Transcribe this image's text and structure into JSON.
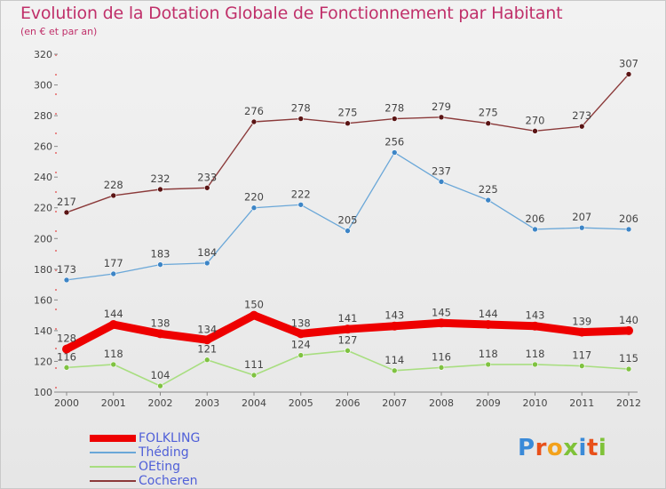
{
  "title": "Evolution de la Dotation Globale de Fonctionnement par Habitant",
  "subtitle": "(en € et par an)",
  "logo": {
    "letters": [
      "P",
      "r",
      "o",
      "x",
      "i",
      "t",
      "i"
    ],
    "colors": [
      "#3a8ad8",
      "#e8501a",
      "#f3a21c",
      "#7fc238",
      "#3a8ad8",
      "#e8501a",
      "#7fc238"
    ]
  },
  "chart_data": {
    "type": "line",
    "title": "Evolution de la Dotation Globale de Fonctionnement par Habitant",
    "subtitle": "(en € et par an)",
    "x": [
      "2000",
      "2001",
      "2002",
      "2003",
      "2004",
      "2005",
      "2006",
      "2007",
      "2008",
      "2009",
      "2010",
      "2011",
      "2012"
    ],
    "ylim": [
      100,
      320
    ],
    "yticks": [
      100,
      120,
      140,
      160,
      180,
      200,
      220,
      240,
      260,
      280,
      300,
      320
    ],
    "grid": false,
    "legend_position": "bottom-left",
    "series": [
      {
        "name": "FOLKLING",
        "color": "#ee0000",
        "dot": "#ee0000",
        "values": [
          128,
          144,
          138,
          134,
          150,
          138,
          141,
          143,
          145,
          144,
          143,
          139,
          140
        ]
      },
      {
        "name": "Théding",
        "color": "#6aa7d8",
        "dot": "#3d85c6",
        "values": [
          173,
          177,
          183,
          184,
          220,
          222,
          205,
          256,
          237,
          225,
          206,
          207,
          206
        ]
      },
      {
        "name": "OEting",
        "color": "#a8de80",
        "dot": "#7fc241",
        "values": [
          116,
          118,
          104,
          121,
          111,
          124,
          127,
          114,
          116,
          118,
          118,
          117,
          115
        ]
      },
      {
        "name": "Cocheren",
        "color": "#8b3a3a",
        "dot": "#5a1414",
        "values": [
          217,
          228,
          232,
          233,
          276,
          278,
          275,
          278,
          279,
          275,
          270,
          273,
          307
        ]
      }
    ]
  }
}
